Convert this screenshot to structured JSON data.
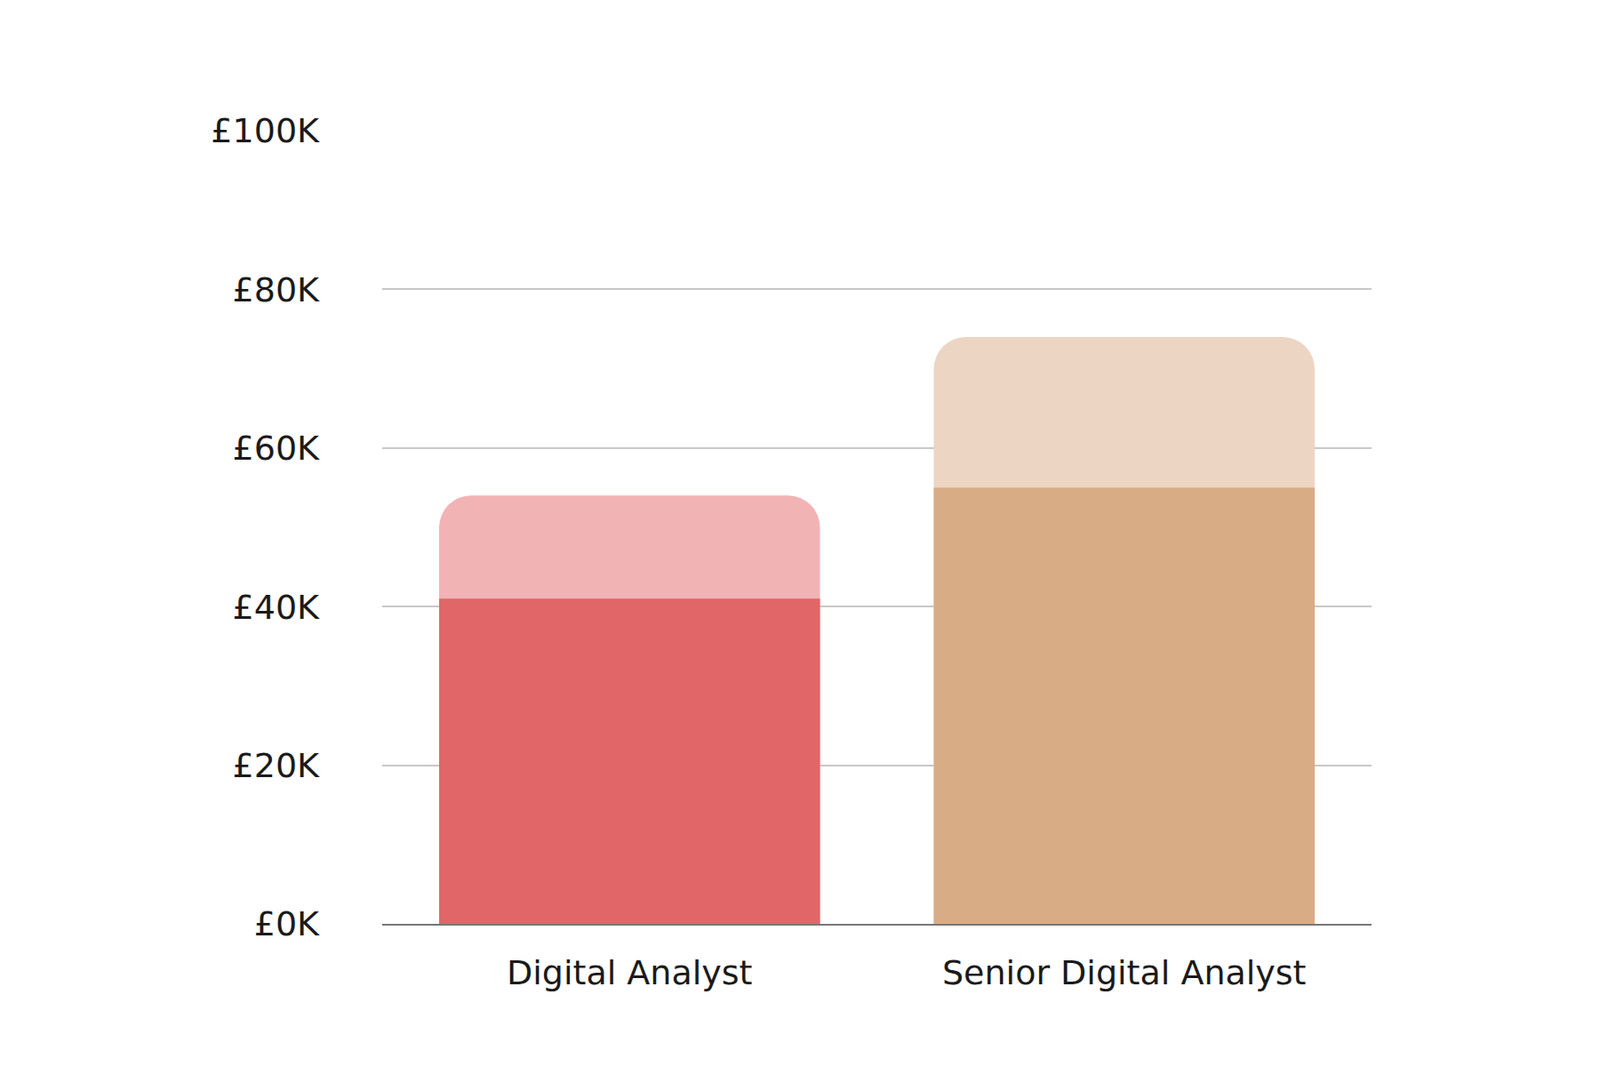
{
  "chart_data": {
    "type": "bar",
    "categories": [
      "Digital Analyst",
      "Senior Digital Analyst"
    ],
    "series": [
      {
        "colors": [
          "#f2b3b5",
          "#ecd5c3"
        ],
        "values": [
          54,
          74
        ]
      },
      {
        "colors": [
          "#e16668",
          "#d8ac85"
        ],
        "values": [
          41,
          55
        ]
      }
    ],
    "stacked": false,
    "ylim": [
      0,
      100
    ],
    "yticks": [
      {
        "value": 0,
        "label": "£0K"
      },
      {
        "value": 20,
        "label": "£20K"
      },
      {
        "value": 40,
        "label": "£40K"
      },
      {
        "value": 60,
        "label": "£60K"
      },
      {
        "value": 80,
        "label": "£80K"
      },
      {
        "value": 100,
        "label": "£100K"
      }
    ],
    "grid": true
  }
}
